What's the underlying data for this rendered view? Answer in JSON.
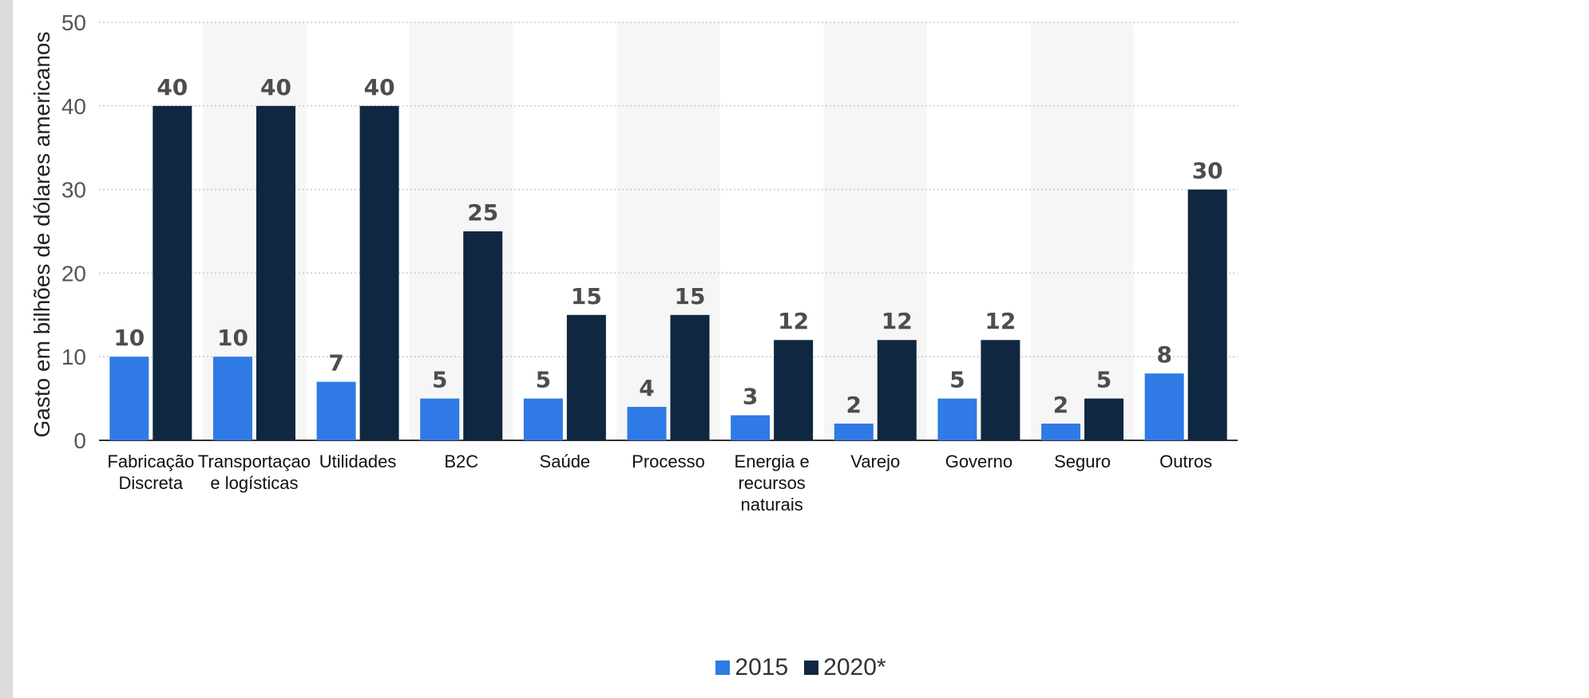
{
  "chart_data": {
    "type": "bar",
    "ylabel": "Gasto em bilhões de dólares americanos",
    "xlabel": "",
    "ylim": [
      0,
      50
    ],
    "yticks": [
      0,
      10,
      20,
      30,
      40,
      50
    ],
    "grid": true,
    "legend_position": "bottom-center",
    "categories": [
      [
        "Fabricação",
        "Discreta"
      ],
      [
        "Transportaçao",
        "e logísticas"
      ],
      [
        "Utilidades"
      ],
      [
        "B2C"
      ],
      [
        "Saúde"
      ],
      [
        "Processo"
      ],
      [
        "Energia e",
        "recursos",
        "naturais"
      ],
      [
        "Varejo"
      ],
      [
        "Governo"
      ],
      [
        "Seguro"
      ],
      [
        "Outros"
      ]
    ],
    "series": [
      {
        "name": "2015",
        "color": "#2f7ae5",
        "values": [
          10,
          10,
          7,
          5,
          5,
          4,
          3,
          2,
          5,
          2,
          8
        ]
      },
      {
        "name": "2020*",
        "color": "#0f2740",
        "values": [
          40,
          40,
          40,
          25,
          15,
          15,
          12,
          12,
          12,
          5,
          30
        ]
      }
    ]
  }
}
